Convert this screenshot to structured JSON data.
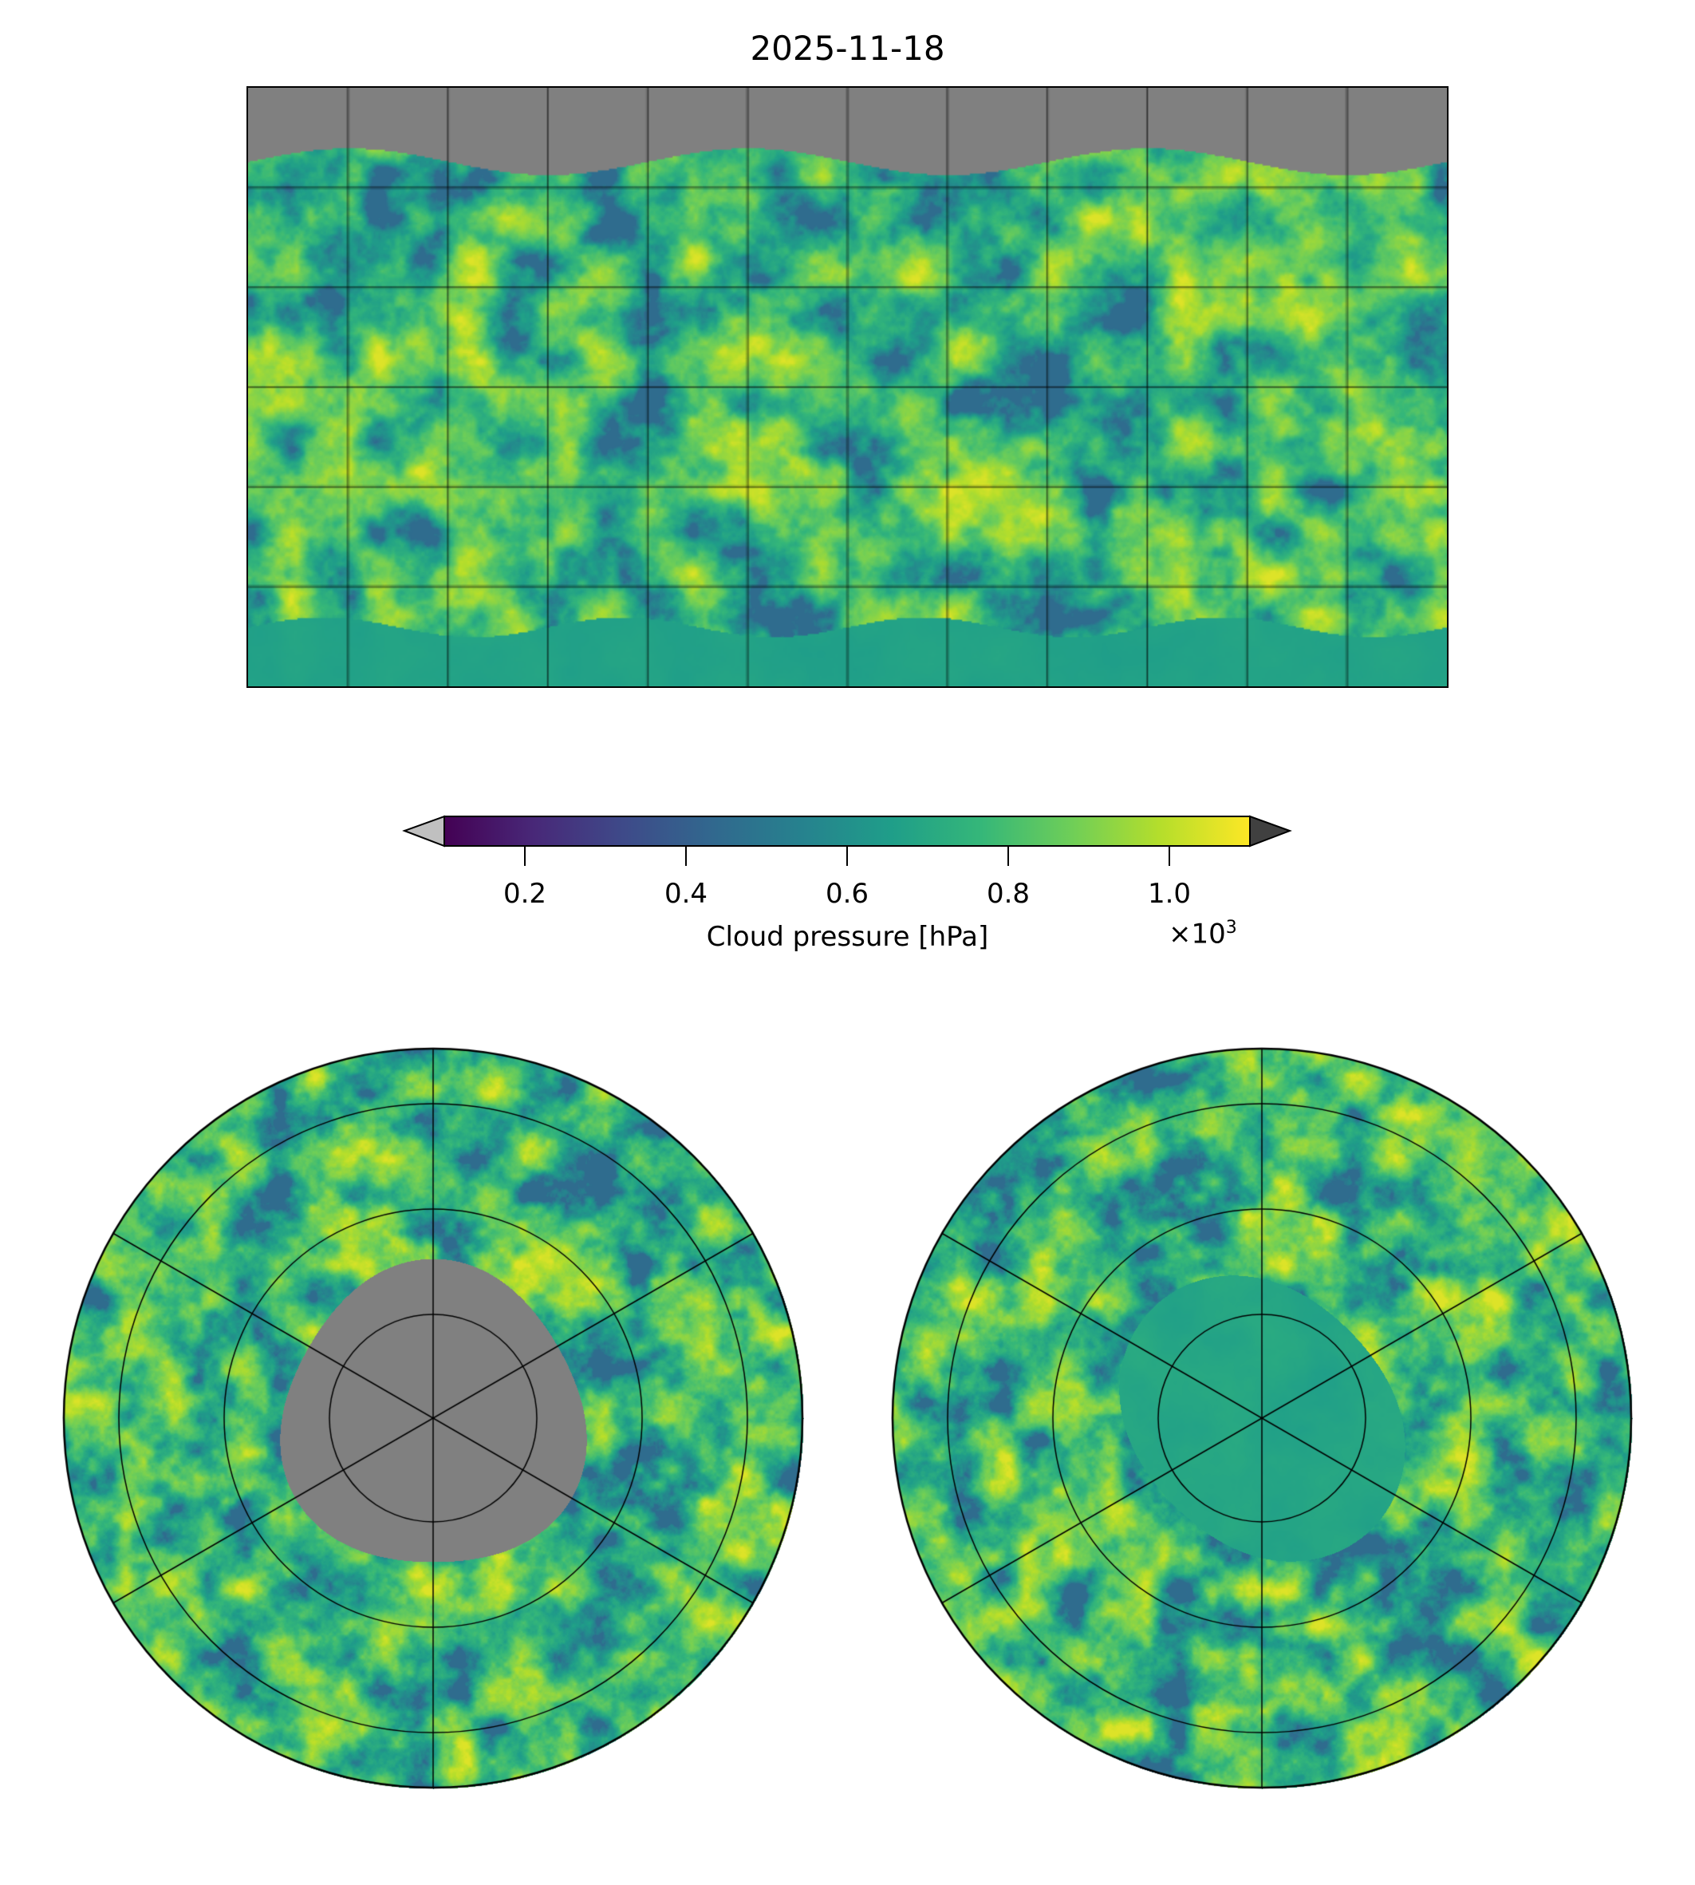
{
  "title": "2025-11-18",
  "colorbar": {
    "label": "Cloud pressure [hPa]",
    "multiplier_base": "×10",
    "multiplier_exp": "3",
    "ticks": [
      "0.2",
      "0.4",
      "0.6",
      "0.8",
      "1.0"
    ],
    "tick_values": [
      0.2,
      0.4,
      0.6,
      0.8,
      1.0
    ],
    "range": [
      0.1,
      1.1
    ],
    "extend": "both",
    "under_color": "#c0c0c0",
    "over_color": "#404040",
    "colormap": "viridis"
  },
  "panels": [
    "global equirectangular map",
    "north polar stereographic",
    "south polar stereographic"
  ],
  "nodata_color": "#808080"
}
